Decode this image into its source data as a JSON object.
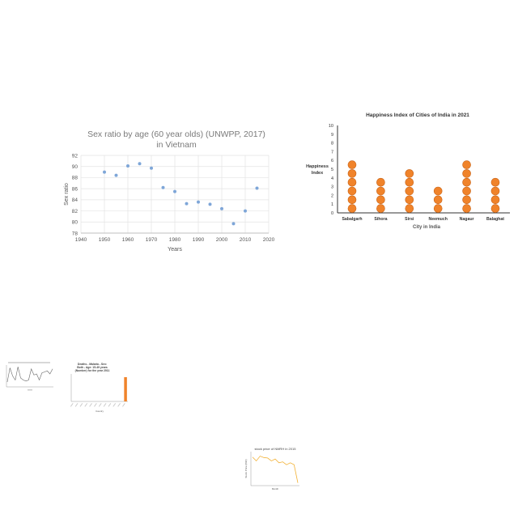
{
  "chart_data": [
    {
      "type": "scatter",
      "title": "Sex ratio by age (60 year olds) (UNWPP, 2017) in Vietnam",
      "xlabel": "Years",
      "ylabel": "Sex ratio",
      "xlim": [
        1940,
        2020
      ],
      "ylim": [
        78,
        92
      ],
      "xticks": [
        1940,
        1950,
        1960,
        1970,
        1980,
        1990,
        2000,
        2010,
        2020
      ],
      "yticks": [
        78,
        80,
        82,
        84,
        86,
        88,
        90,
        92
      ],
      "grid": true,
      "color": "#7ea6d8",
      "points": [
        {
          "x": 1950,
          "y": 89.0
        },
        {
          "x": 1955,
          "y": 88.4
        },
        {
          "x": 1960,
          "y": 90.1
        },
        {
          "x": 1965,
          "y": 90.5
        },
        {
          "x": 1970,
          "y": 89.7
        },
        {
          "x": 1975,
          "y": 86.2
        },
        {
          "x": 1980,
          "y": 85.5
        },
        {
          "x": 1985,
          "y": 83.3
        },
        {
          "x": 1990,
          "y": 83.6
        },
        {
          "x": 1995,
          "y": 83.2
        },
        {
          "x": 2000,
          "y": 82.4
        },
        {
          "x": 2005,
          "y": 79.7
        },
        {
          "x": 2010,
          "y": 82.0
        },
        {
          "x": 2015,
          "y": 86.1
        }
      ]
    },
    {
      "type": "pictograph",
      "title": "Happiness Index of Cities of India in 2021",
      "xlabel": "City in India",
      "ylabel": "Happiness Index",
      "ylim": [
        0,
        10
      ],
      "yticks": [
        0,
        1,
        2,
        3,
        4,
        5,
        6,
        7,
        8,
        9,
        10
      ],
      "color": "#f0832a",
      "categories": [
        "Sabalgarh",
        "Sihora",
        "Sirsi",
        "Neemuch",
        "Nagaur",
        "Balaghat"
      ],
      "values": [
        6,
        4,
        5,
        3,
        6,
        4
      ]
    },
    {
      "type": "line",
      "title": "",
      "values": [
        0.2,
        0.9,
        0.5,
        0.3,
        0.95,
        0.4,
        0.3,
        0.25,
        0.3,
        0.85,
        0.55,
        0.6,
        0.3,
        0.65,
        0.7,
        0.75,
        0.6,
        0.85
      ],
      "color": "#666666"
    },
    {
      "type": "bar",
      "title": "Deaths - Malaria - Sex: Both - Age: 15-49 years (Number) for the year 2011",
      "xlabel": "Country",
      "ylabel": "",
      "categories": [
        "",
        "",
        "",
        "",
        "",
        "",
        "",
        "",
        "",
        "",
        "",
        ""
      ],
      "values": [
        0,
        0,
        0,
        0,
        0,
        0,
        0,
        0,
        0,
        0,
        0,
        1
      ],
      "color": "#f0832a"
    },
    {
      "type": "line",
      "title": "stock price of NMRH in 2015",
      "xlabel": "Month",
      "ylabel": "Stock Price (INR)",
      "color": "#f2b134",
      "values": [
        3.8,
        3.4,
        3.9,
        3.75,
        3.7,
        3.4,
        3.6,
        3.2,
        3.3,
        3.0,
        3.2,
        3.0,
        1.1
      ]
    }
  ]
}
